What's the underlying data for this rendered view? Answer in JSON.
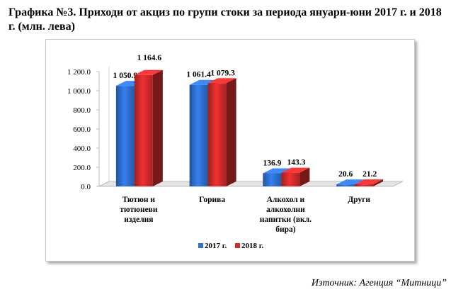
{
  "title": "Графика №3. Приходи от акциз по групи стоки за периода януари-юни 2017 г. и 2018 г. (млн. лева)",
  "source": "Източник: Агенция “Митници”",
  "chart_data": {
    "type": "bar",
    "style": "3d-clustered-column",
    "categories": [
      [
        "Тютюн и",
        "тютюневи",
        "изделия"
      ],
      [
        "Горива"
      ],
      [
        "Алкохол и",
        "алкохолни",
        "напитки (вкл.",
        "бира)"
      ],
      [
        "Други"
      ]
    ],
    "series": [
      {
        "name": "2017 г.",
        "color": "#2e6fd0",
        "values": [
          1050.9,
          1061.4,
          136.9,
          20.6
        ],
        "labels": [
          "1 050.9",
          "1 061.4",
          "136.9",
          "20.6"
        ]
      },
      {
        "name": "2018 г.",
        "color": "#d22b2b",
        "values": [
          1164.6,
          1079.3,
          143.3,
          21.2
        ],
        "labels": [
          "1 164.6",
          "1 079.3",
          "143.3",
          "21.2"
        ]
      }
    ],
    "yticks": [
      "0.0",
      "200.0",
      "400.0",
      "600.0",
      "800.0",
      "1 000.0",
      "1 200.0"
    ],
    "ylim": [
      0,
      1200
    ],
    "grid": false,
    "legend": "bottom"
  }
}
